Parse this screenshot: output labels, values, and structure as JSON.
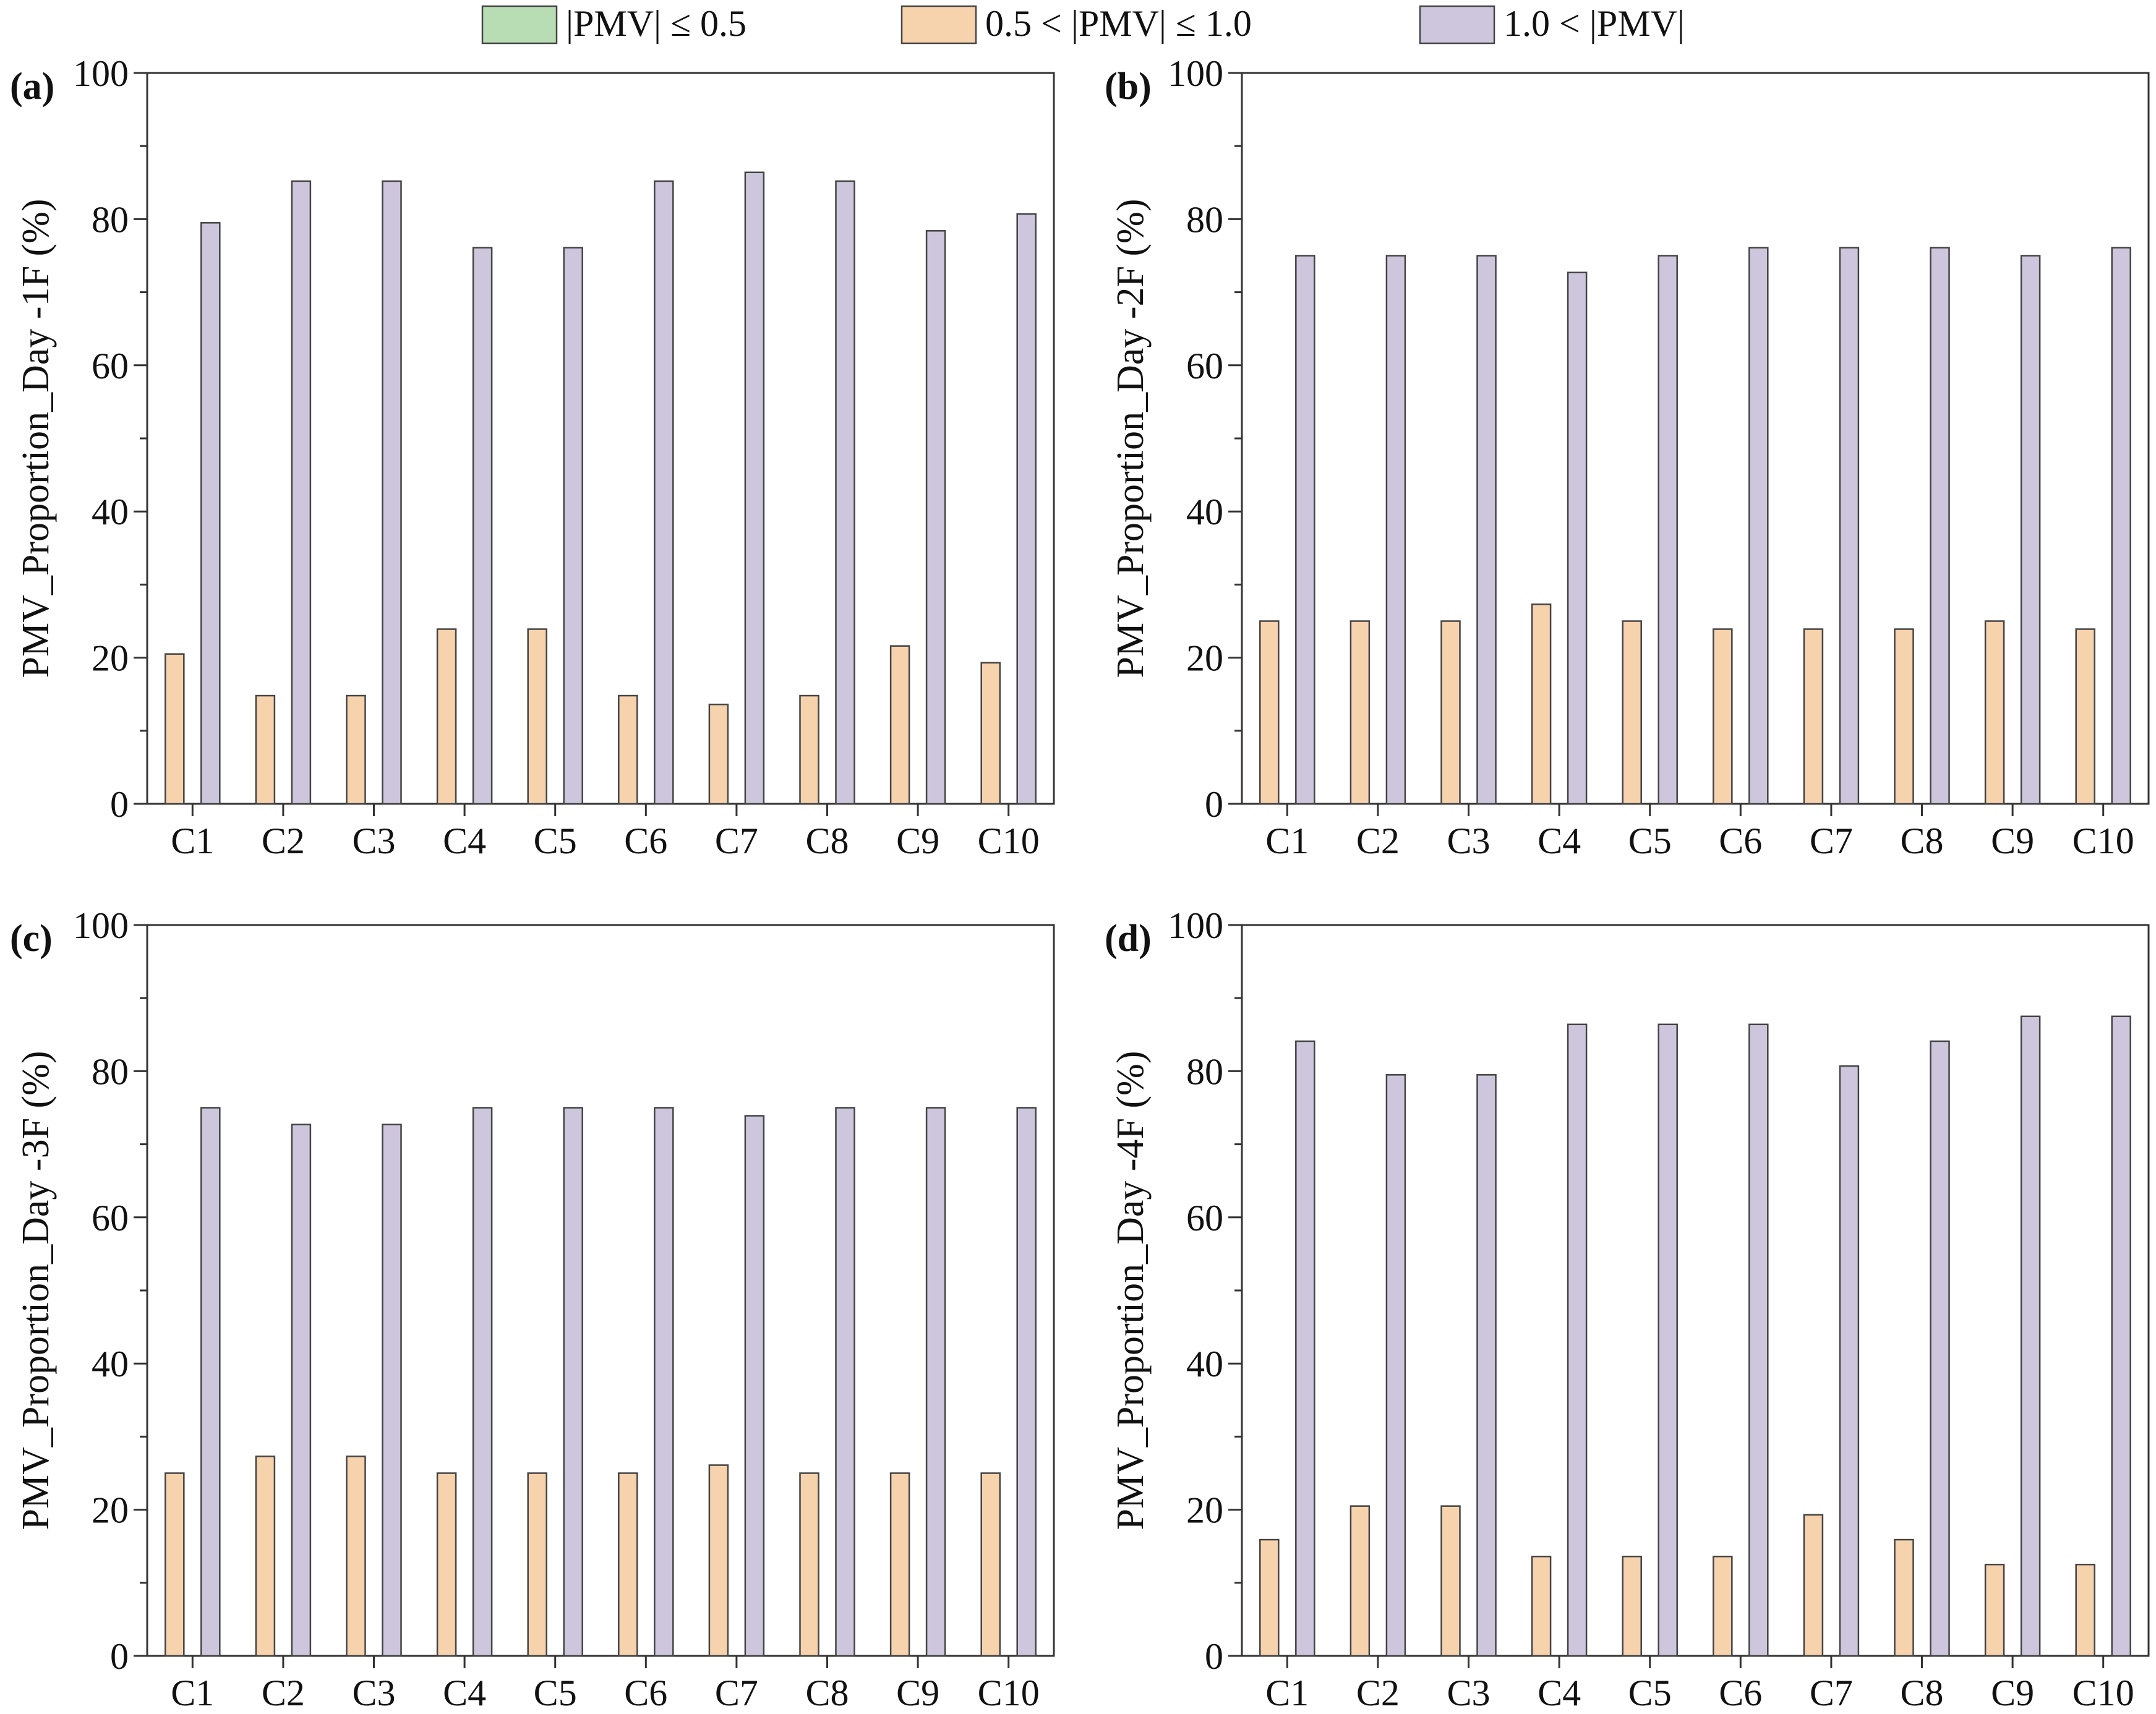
{
  "colors": {
    "within_0_5": "#b8dcb4",
    "between_0_5_1_0": "#f6d2ad",
    "above_1_0": "#cec6dd"
  },
  "chart_data": [
    {
      "type": "bar",
      "panel_label": "(a)",
      "ylabel": "PMV_Proportion_Day -1F (%)",
      "xlabel": "",
      "ylim": [
        0,
        100
      ],
      "yticks": [
        "0",
        "20",
        "40",
        "60",
        "80",
        "100"
      ],
      "categories": [
        "C1",
        "C2",
        "C3",
        "C4",
        "C5",
        "C6",
        "C7",
        "C8",
        "C9",
        "C10"
      ],
      "series": [
        {
          "name": "|PMV| ≤ 0.5",
          "color": "#b8dcb4",
          "values": [
            0,
            0,
            0,
            0,
            0,
            0,
            0,
            0,
            0,
            0
          ]
        },
        {
          "name": "0.5 < |PMV| ≤ 1.0",
          "color": "#f6d2ad",
          "values": [
            20.5,
            14.8,
            14.8,
            23.9,
            23.9,
            14.8,
            13.6,
            14.8,
            21.6,
            19.3
          ]
        },
        {
          "name": "1.0 < |PMV|",
          "color": "#cec6dd",
          "values": [
            79.5,
            85.2,
            85.2,
            76.1,
            76.1,
            85.2,
            86.4,
            85.2,
            78.4,
            80.7
          ]
        }
      ]
    },
    {
      "type": "bar",
      "panel_label": "(b)",
      "ylabel": "PMV_Proportion_Day -2F (%)",
      "xlabel": "",
      "ylim": [
        0,
        100
      ],
      "yticks": [
        "0",
        "20",
        "40",
        "60",
        "80",
        "100"
      ],
      "categories": [
        "C1",
        "C2",
        "C3",
        "C4",
        "C5",
        "C6",
        "C7",
        "C8",
        "C9",
        "C10"
      ],
      "series": [
        {
          "name": "|PMV| ≤ 0.5",
          "color": "#b8dcb4",
          "values": [
            0,
            0,
            0,
            0,
            0,
            0,
            0,
            0,
            0,
            0
          ]
        },
        {
          "name": "0.5 < |PMV| ≤ 1.0",
          "color": "#f6d2ad",
          "values": [
            25.0,
            25.0,
            25.0,
            27.3,
            25.0,
            23.9,
            23.9,
            23.9,
            25.0,
            23.9
          ]
        },
        {
          "name": "1.0 < |PMV|",
          "color": "#cec6dd",
          "values": [
            75.0,
            75.0,
            75.0,
            72.7,
            75.0,
            76.1,
            76.1,
            76.1,
            75.0,
            76.1
          ]
        }
      ]
    },
    {
      "type": "bar",
      "panel_label": "(c)",
      "ylabel": "PMV_Proportion_Day -3F (%)",
      "xlabel": "",
      "ylim": [
        0,
        100
      ],
      "yticks": [
        "0",
        "20",
        "40",
        "60",
        "80",
        "100"
      ],
      "categories": [
        "C1",
        "C2",
        "C3",
        "C4",
        "C5",
        "C6",
        "C7",
        "C8",
        "C9",
        "C10"
      ],
      "series": [
        {
          "name": "|PMV| ≤ 0.5",
          "color": "#b8dcb4",
          "values": [
            0,
            0,
            0,
            0,
            0,
            0,
            0,
            0,
            0,
            0
          ]
        },
        {
          "name": "0.5 < |PMV| ≤ 1.0",
          "color": "#f6d2ad",
          "values": [
            25.0,
            27.3,
            27.3,
            25.0,
            25.0,
            25.0,
            26.1,
            25.0,
            25.0,
            25.0
          ]
        },
        {
          "name": "1.0 < |PMV|",
          "color": "#cec6dd",
          "values": [
            75.0,
            72.7,
            72.7,
            75.0,
            75.0,
            75.0,
            73.9,
            75.0,
            75.0,
            75.0
          ]
        }
      ]
    },
    {
      "type": "bar",
      "panel_label": "(d)",
      "ylabel": "PMV_Proportion_Day -4F (%)",
      "xlabel": "",
      "ylim": [
        0,
        100
      ],
      "yticks": [
        "0",
        "20",
        "40",
        "60",
        "80",
        "100"
      ],
      "categories": [
        "C1",
        "C2",
        "C3",
        "C4",
        "C5",
        "C6",
        "C7",
        "C8",
        "C9",
        "C10"
      ],
      "series": [
        {
          "name": "|PMV| ≤ 0.5",
          "color": "#b8dcb4",
          "values": [
            0,
            0,
            0,
            0,
            0,
            0,
            0,
            0,
            0,
            0
          ]
        },
        {
          "name": "0.5 < |PMV| ≤ 1.0",
          "color": "#f6d2ad",
          "values": [
            15.9,
            20.5,
            20.5,
            13.6,
            13.6,
            13.6,
            19.3,
            15.9,
            12.5,
            12.5
          ]
        },
        {
          "name": "1.0 < |PMV|",
          "color": "#cec6dd",
          "values": [
            84.1,
            79.5,
            79.5,
            86.4,
            86.4,
            86.4,
            80.7,
            84.1,
            87.5,
            87.5
          ]
        }
      ]
    }
  ]
}
